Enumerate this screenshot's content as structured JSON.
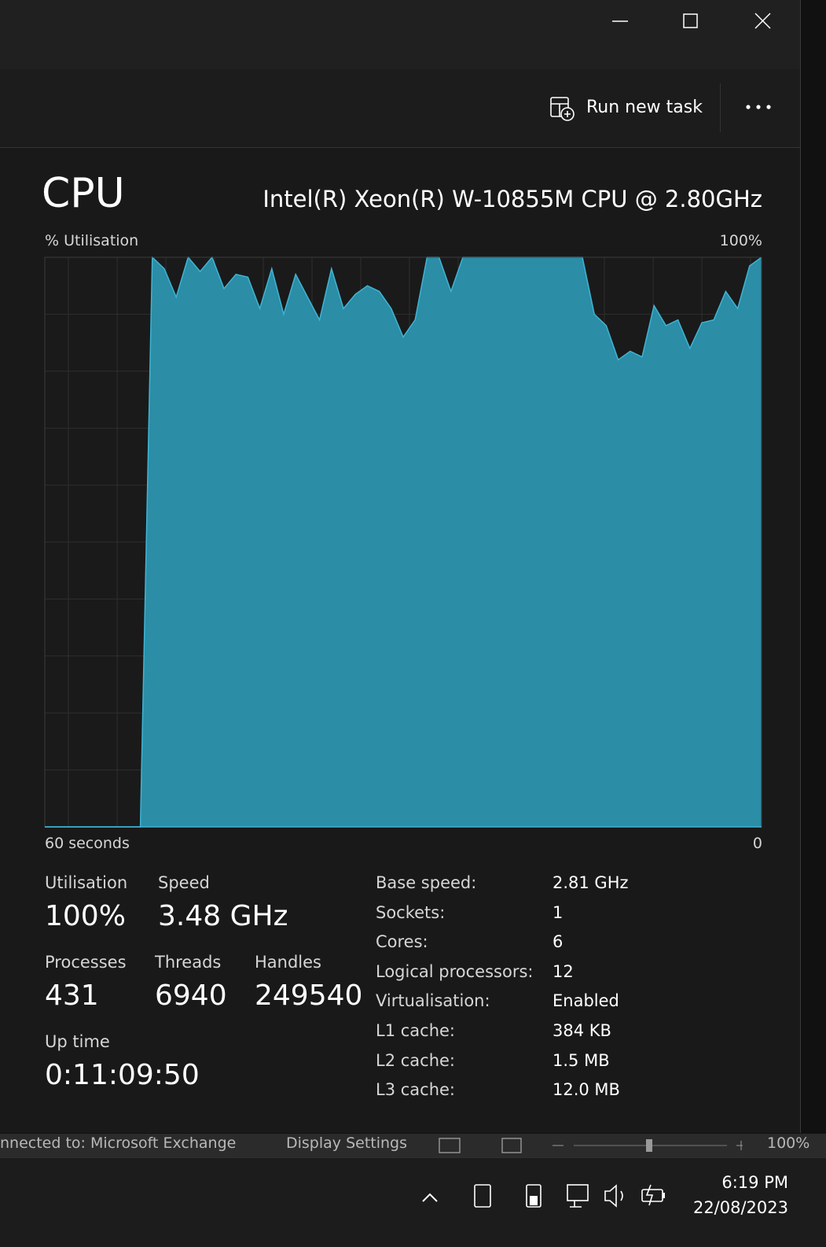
{
  "toolbar": {
    "run_new_task": "Run new task"
  },
  "header": {
    "title": "CPU",
    "processor": "Intel(R) Xeon(R) W-10855M CPU @ 2.80GHz"
  },
  "graph": {
    "y_label": "% Utilisation",
    "y_top_label": "100%",
    "x_start_label": "60 seconds",
    "x_end_label": "0",
    "ylim": [
      0,
      100
    ],
    "values": [
      0,
      0,
      0,
      0,
      0,
      0,
      0,
      0,
      0,
      100,
      98,
      93,
      100,
      97.5,
      100,
      94.5,
      97,
      96.5,
      91,
      98,
      90,
      97,
      93,
      89,
      98,
      91,
      93.5,
      95,
      94,
      91,
      86,
      89,
      100,
      100,
      94,
      100,
      100,
      100,
      100,
      100,
      100,
      100,
      100,
      100,
      100,
      100,
      90,
      88,
      82,
      83.5,
      82.5,
      91.5,
      88,
      89,
      84,
      88.5,
      89,
      94,
      91,
      98.5,
      100
    ]
  },
  "stats": {
    "utilisation_label": "Utilisation",
    "utilisation": "100%",
    "speed_label": "Speed",
    "speed": "3.48 GHz",
    "processes_label": "Processes",
    "processes": "431",
    "threads_label": "Threads",
    "threads": "6940",
    "handles_label": "Handles",
    "handles": "249540",
    "uptime_label": "Up time",
    "uptime": "0:11:09:50"
  },
  "details": [
    [
      "Base speed:",
      "2.81 GHz"
    ],
    [
      "Sockets:",
      "1"
    ],
    [
      "Cores:",
      "6"
    ],
    [
      "Logical processors:",
      "12"
    ],
    [
      "Virtualisation:",
      "Enabled"
    ],
    [
      "L1 cache:",
      "384 KB"
    ],
    [
      "L2 cache:",
      "1.5 MB"
    ],
    [
      "L3 cache:",
      "12.0 MB"
    ]
  ],
  "status_bar": {
    "connection": "nnected to: Microsoft Exchange",
    "display": "Display Settings",
    "zoom": "100%"
  },
  "taskbar": {
    "time": "6:19 PM",
    "date": "22/08/2023"
  }
}
